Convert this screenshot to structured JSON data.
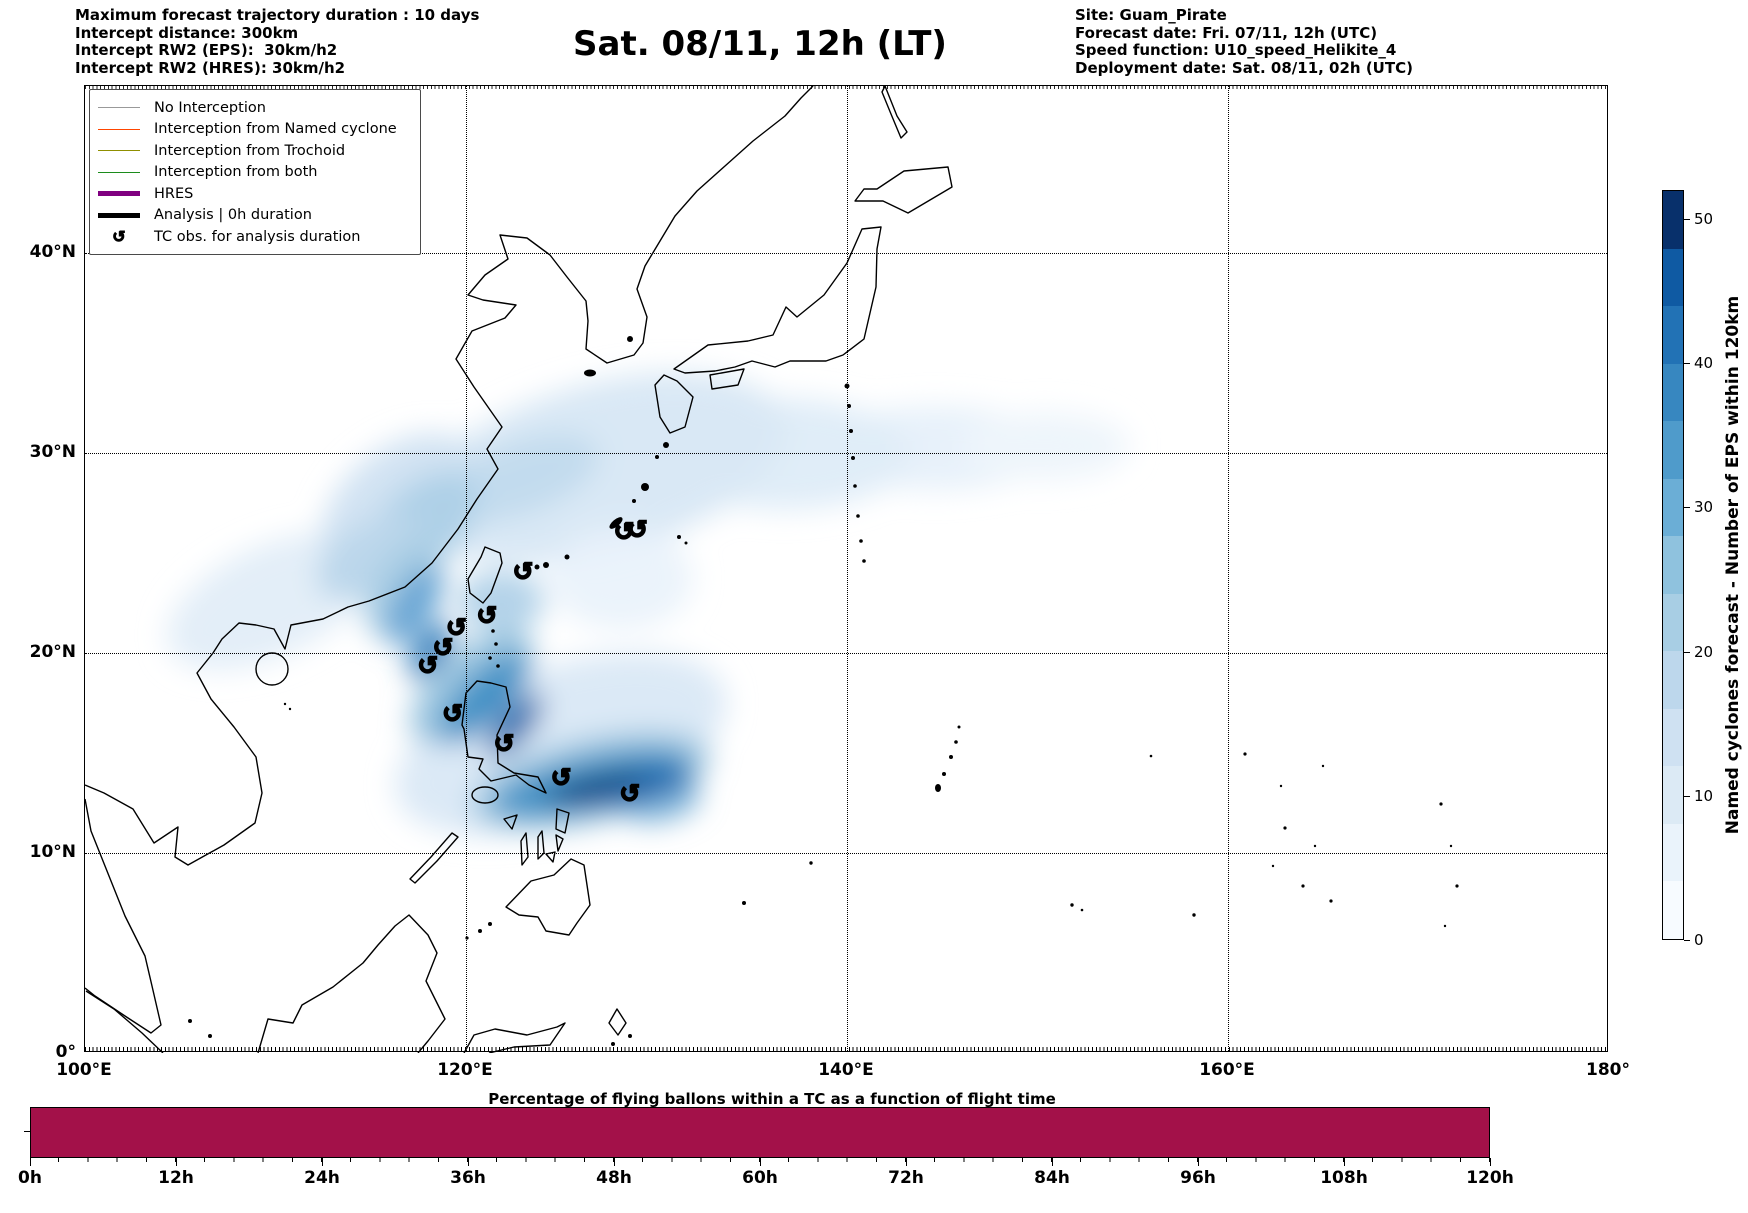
{
  "header": {
    "left_lines": [
      "Maximum forecast trajectory duration : 10 days",
      "Intercept distance: 300km",
      "Intercept RW2 (EPS):  30km/h2",
      "Intercept RW2 (HRES): 30km/h2"
    ],
    "title": "Sat. 08/11, 12h (LT)",
    "right_lines": [
      "Site: Guam_Pirate",
      "Forecast date: Fri. 07/11, 12h (UTC)",
      "Speed function: U10_speed_Helikite_4",
      "Deployment date: Sat. 08/11, 02h (UTC)"
    ]
  },
  "map": {
    "x_ticks": [
      {
        "label": "100°E",
        "lon": 100
      },
      {
        "label": "120°E",
        "lon": 120
      },
      {
        "label": "140°E",
        "lon": 140
      },
      {
        "label": "160°E",
        "lon": 160
      },
      {
        "label": "180°",
        "lon": 180
      }
    ],
    "y_ticks": [
      {
        "label": "0°",
        "lat": 0
      },
      {
        "label": "10°N",
        "lat": 10
      },
      {
        "label": "20°N",
        "lat": 20
      },
      {
        "label": "30°N",
        "lat": 30
      },
      {
        "label": "40°N",
        "lat": 40
      }
    ],
    "lon_range": [
      100,
      180
    ],
    "lat_range": [
      0,
      48.35
    ],
    "legend": {
      "items": [
        {
          "label": "No Interception",
          "color": "#999999",
          "weight": 1.5
        },
        {
          "label": "Interception from Named cyclone",
          "color": "#ff4500",
          "weight": 1.5
        },
        {
          "label": "Interception from Trochoid",
          "color": "#8f8f00",
          "weight": 1.5
        },
        {
          "label": "Interception from both",
          "color": "#1c8c1c",
          "weight": 1.5
        },
        {
          "label": "HRES",
          "color": "#800080",
          "weight": 5
        },
        {
          "label": "Analysis | 0h duration",
          "color": "#000000",
          "weight": 5
        }
      ],
      "tc_symbol": "↺",
      "tc_label": "TC obs. for analysis duration"
    },
    "tc_marker_symbol": "↺"
  },
  "colorbar": {
    "title": "Named cyclones forecast - Number of EPS within 120km",
    "ticks": [
      0,
      10,
      20,
      30,
      40,
      50
    ],
    "vmin": 0,
    "vmax": 52,
    "colors_bottom_to_top": [
      "#f7fbff",
      "#eaf3fb",
      "#dceaf5",
      "#cfe1f2",
      "#bdd7ec",
      "#a8cee4",
      "#8fc2de",
      "#6baed6",
      "#4f9bcb",
      "#3787c0",
      "#2272b5",
      "#0f5aa3",
      "#08306b"
    ]
  },
  "bottom_chart": {
    "title": "Percentage of flying ballons within a TC as a function of flight time",
    "x_ticks": [
      "0h",
      "12h",
      "24h",
      "36h",
      "48h",
      "60h",
      "72h",
      "84h",
      "96h",
      "108h",
      "120h"
    ],
    "bar_color": "#a31149",
    "value_percent": 100
  },
  "chart_data": [
    {
      "type": "heatmap",
      "title": "Sat. 08/11, 12h (LT)",
      "x_ticks": [
        "100°E",
        "120°E",
        "140°E",
        "160°E",
        "180°"
      ],
      "y_ticks": [
        "0°",
        "10°N",
        "20°N",
        "30°N",
        "40°N"
      ],
      "xlim": [
        100,
        180
      ],
      "ylim": [
        0,
        48.35
      ],
      "grid": "dotted 10-degree graticule",
      "colormap": "Blues",
      "value_range": [
        0,
        52
      ],
      "colorbar_label": "Named cyclones forecast - Number of EPS within 120km",
      "tc_observations_lon_lat": [
        [
          128.3,
          26.0
        ],
        [
          129.0,
          26.1
        ],
        [
          123.0,
          24.0
        ],
        [
          121.1,
          21.8
        ],
        [
          119.5,
          21.2
        ],
        [
          118.8,
          20.2
        ],
        [
          118.0,
          19.3
        ],
        [
          119.3,
          16.9
        ],
        [
          122.0,
          15.4
        ],
        [
          125.0,
          13.7
        ],
        [
          128.6,
          12.9
        ]
      ],
      "density_summary": "Dark track-density band from ~129E/13N WNW across Luzon to the Luzon Strait (~118E/20N), curving north along the Taiwan Strait; lighter spread over the East China Sea toward Okinawa and a faint arm east to ~145E/28N"
    },
    {
      "type": "bar",
      "title": "Percentage of flying ballons within a TC as a function of flight time",
      "categories": [
        "0h",
        "12h",
        "24h",
        "36h",
        "48h",
        "60h",
        "72h",
        "84h",
        "96h",
        "108h",
        "120h"
      ],
      "x_range_hours": [
        0,
        120
      ],
      "values_percent": [
        100,
        100,
        100,
        100,
        100,
        100,
        100,
        100,
        100,
        100,
        100
      ],
      "ylim": [
        0,
        100
      ],
      "bar_color": "#a31149",
      "note": "single continuous bar spanning 0h-120h at full height"
    }
  ]
}
